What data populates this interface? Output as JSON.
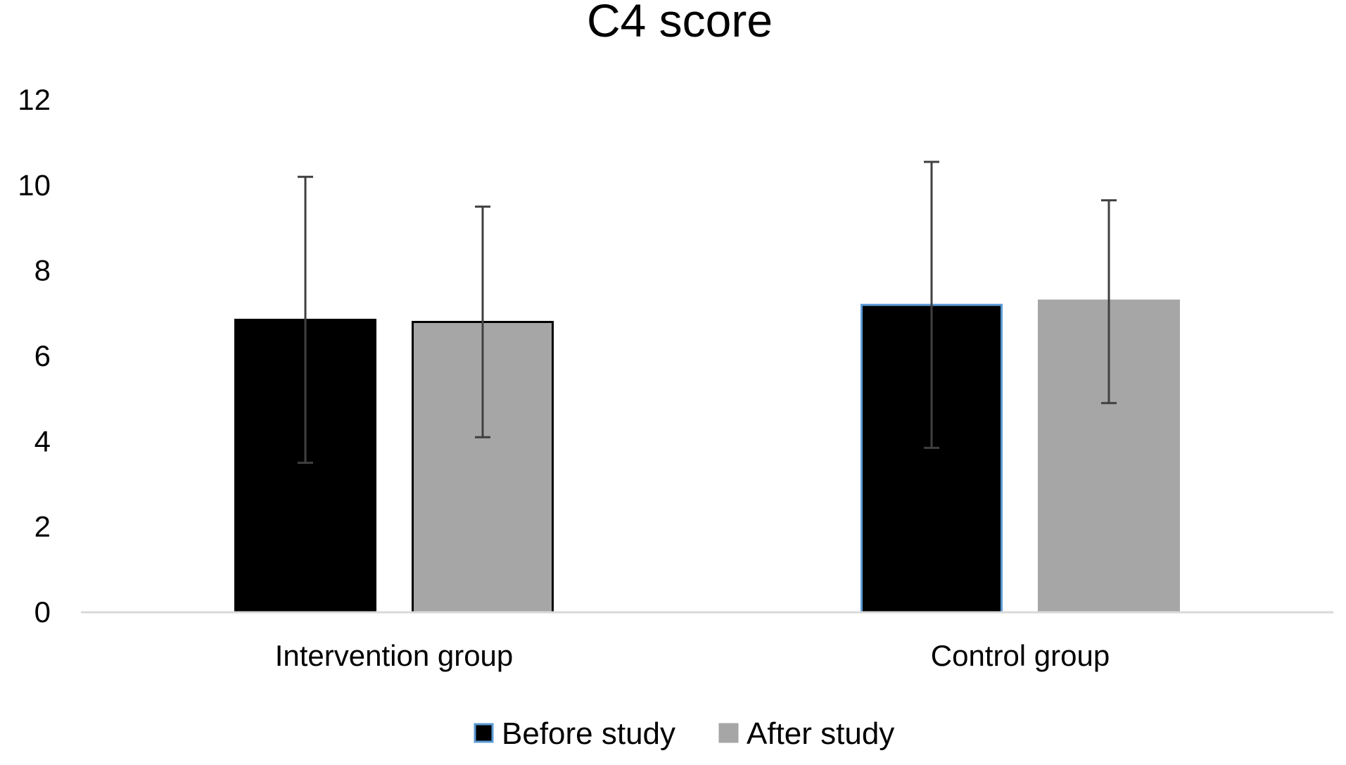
{
  "chart_data": {
    "type": "bar",
    "title": "C4  score",
    "xlabel": "",
    "ylabel": "",
    "ylim": [
      0,
      12
    ],
    "yticks": [
      0,
      2,
      4,
      6,
      8,
      10,
      12
    ],
    "grid": false,
    "legend_position": "bottom",
    "categories": [
      "Intervention group",
      "Control group"
    ],
    "series": [
      {
        "name": "Before study",
        "values": [
          6.85,
          7.2
        ],
        "error_low": [
          3.5,
          3.85
        ],
        "error_high": [
          10.2,
          10.55
        ],
        "fill": "#000000",
        "strokes": [
          "#000000",
          "#5b9bd5"
        ],
        "legend_stroke": "#5b9bd5"
      },
      {
        "name": "After study",
        "values": [
          6.8,
          7.3
        ],
        "error_low": [
          4.1,
          4.9
        ],
        "error_high": [
          9.5,
          9.65
        ],
        "fill": "#a6a6a6",
        "strokes": [
          "#000000",
          "#a6a6a6"
        ],
        "legend_stroke": "#a6a6a6"
      }
    ],
    "colors": {
      "axis": "#d9d9d9",
      "error_bar": "#404040"
    }
  }
}
